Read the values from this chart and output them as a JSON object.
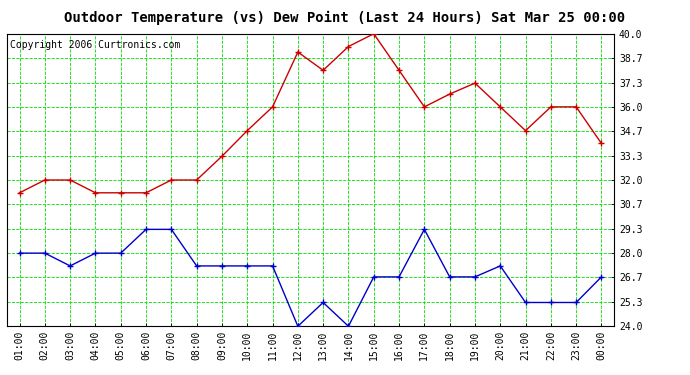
{
  "title": "Outdoor Temperature (vs) Dew Point (Last 24 Hours) Sat Mar 25 00:00",
  "copyright": "Copyright 2006 Curtronics.com",
  "x_labels": [
    "01:00",
    "02:00",
    "03:00",
    "04:00",
    "05:00",
    "06:00",
    "07:00",
    "08:00",
    "09:00",
    "10:00",
    "11:00",
    "12:00",
    "13:00",
    "14:00",
    "15:00",
    "16:00",
    "17:00",
    "18:00",
    "19:00",
    "20:00",
    "21:00",
    "22:00",
    "23:00",
    "00:00"
  ],
  "temp_values": [
    31.3,
    32.0,
    32.0,
    31.3,
    31.3,
    31.3,
    32.0,
    32.0,
    33.3,
    34.7,
    36.0,
    39.0,
    38.0,
    39.3,
    40.0,
    38.0,
    36.0,
    36.7,
    37.3,
    36.0,
    34.7,
    36.0,
    36.0,
    34.0
  ],
  "dew_values": [
    28.0,
    28.0,
    27.3,
    28.0,
    28.0,
    29.3,
    29.3,
    27.3,
    27.3,
    27.3,
    27.3,
    24.0,
    25.3,
    24.0,
    26.7,
    26.7,
    29.3,
    26.7,
    26.7,
    27.3,
    25.3,
    25.3,
    25.3,
    26.7
  ],
  "temp_color": "#cc0000",
  "dew_color": "#0000cc",
  "background_color": "#ffffff",
  "grid_color": "#00dd00",
  "border_color": "#000000",
  "y_min": 24.0,
  "y_max": 40.0,
  "y_ticks": [
    24.0,
    25.3,
    26.7,
    28.0,
    29.3,
    30.7,
    32.0,
    33.3,
    34.7,
    36.0,
    37.3,
    38.7,
    40.0
  ],
  "title_fontsize": 10,
  "tick_fontsize": 7,
  "copyright_fontsize": 7,
  "marker_size": 4,
  "line_width": 1.0
}
